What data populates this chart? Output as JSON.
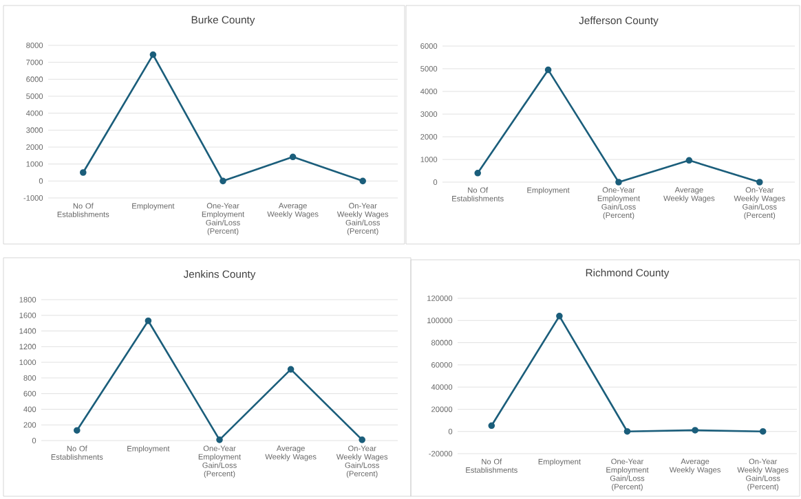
{
  "chart_data": [
    {
      "type": "line",
      "title": "Burke County",
      "categories": [
        "No Of Establishments",
        "Employment",
        "One-Year Employment Gain/Loss (Percent)",
        "Average Weekly Wages",
        "On-Year Weekly Wages Gain/Loss (Percent)"
      ],
      "values": [
        500,
        7450,
        0,
        1420,
        0
      ],
      "color": "#1b5e7b",
      "ylim": [
        -1000,
        8000
      ],
      "yticks": [
        -1000,
        0,
        1000,
        2000,
        3000,
        4000,
        5000,
        6000,
        7000,
        8000
      ],
      "grid": "y",
      "marker": "circle"
    },
    {
      "type": "line",
      "title": "Jefferson County",
      "categories": [
        "No Of Establishments",
        "Employment",
        "One-Year Employment Gain/Loss (Percent)",
        "Average Weekly Wages",
        "On-Year Weekly Wages Gain/Loss (Percent)"
      ],
      "values": [
        400,
        4950,
        0,
        960,
        0
      ],
      "color": "#1b5e7b",
      "ylim": [
        0,
        6000
      ],
      "yticks": [
        0,
        1000,
        2000,
        3000,
        4000,
        5000,
        6000
      ],
      "grid": "y",
      "marker": "circle"
    },
    {
      "type": "line",
      "title": "Jenkins County",
      "categories": [
        "No Of Establishments",
        "Employment",
        "One-Year Employment Gain/Loss (Percent)",
        "Average Weekly Wages",
        "On-Year Weekly Wages Gain/Loss (Percent)"
      ],
      "values": [
        130,
        1530,
        10,
        910,
        10
      ],
      "color": "#1b5e7b",
      "ylim": [
        0,
        1800
      ],
      "yticks": [
        0,
        200,
        400,
        600,
        800,
        1000,
        1200,
        1400,
        1600,
        1800
      ],
      "grid": "y",
      "marker": "circle"
    },
    {
      "type": "line",
      "title": "Richmond County",
      "categories": [
        "No Of Establishments",
        "Employment",
        "One-Year Employment Gain/Loss (Percent)",
        "Average Weekly Wages",
        "On-Year Weekly Wages Gain/Loss (Percent)"
      ],
      "values": [
        5200,
        104000,
        0,
        1100,
        0
      ],
      "color": "#1b5e7b",
      "ylim": [
        -20000,
        120000
      ],
      "yticks": [
        -20000,
        0,
        20000,
        40000,
        60000,
        80000,
        100000,
        120000
      ],
      "grid": "y",
      "marker": "circle"
    }
  ]
}
